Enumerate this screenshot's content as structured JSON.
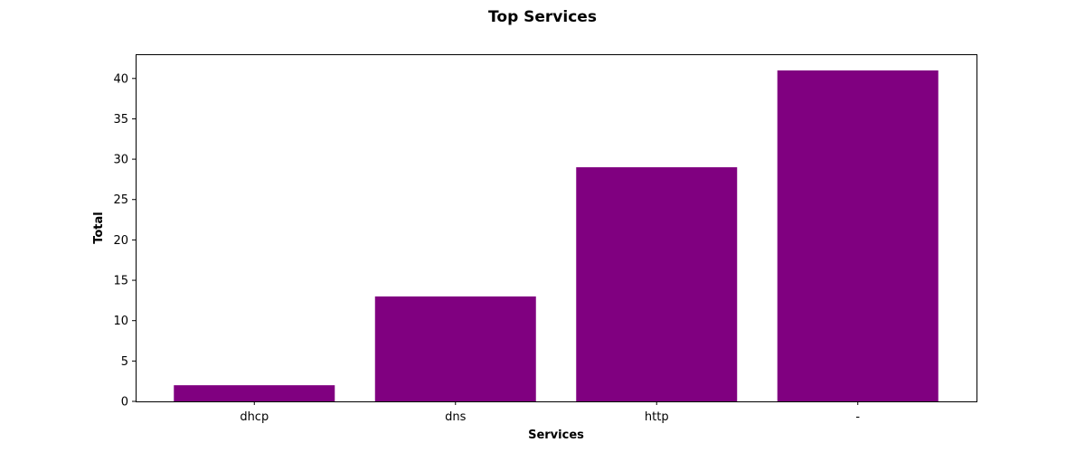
{
  "chart_data": {
    "type": "bar",
    "title": "Top Services",
    "xlabel": "Services",
    "ylabel": "Total",
    "categories": [
      "dhcp",
      "dns",
      "http",
      "-"
    ],
    "values": [
      2,
      13,
      29,
      41
    ],
    "ylim": [
      0,
      43
    ],
    "yticks": [
      0,
      5,
      10,
      15,
      20,
      25,
      30,
      35,
      40
    ],
    "grid": false,
    "bar_color": "#800080"
  }
}
